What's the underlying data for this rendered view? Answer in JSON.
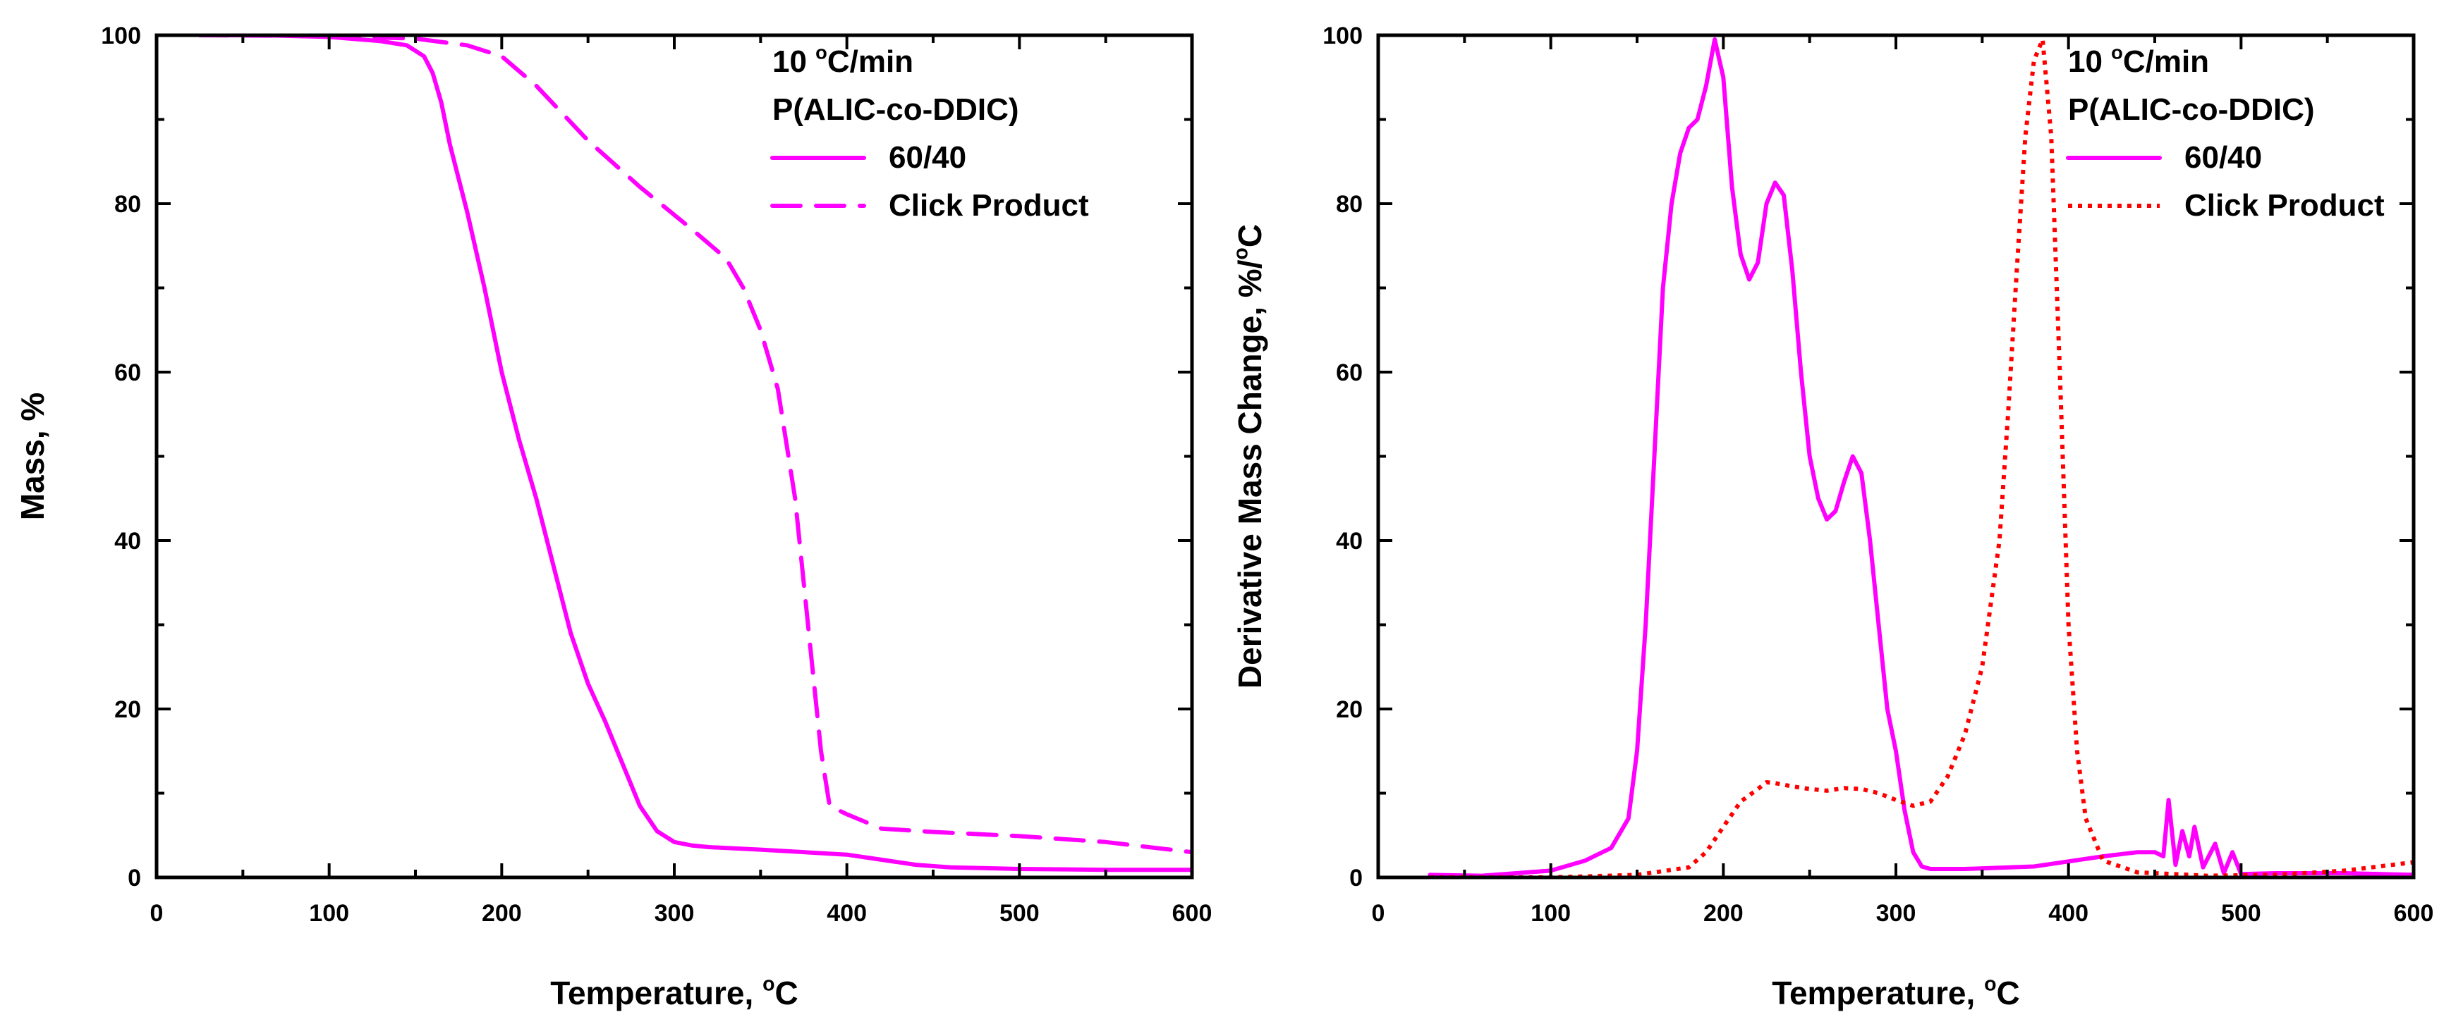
{
  "chart_data": [
    {
      "type": "line",
      "title": "",
      "xlabel": "Temperature, °C",
      "ylabel": "Mass, %",
      "xlim": [
        0,
        600
      ],
      "ylim": [
        0,
        100
      ],
      "xticks": [
        0,
        100,
        200,
        300,
        400,
        500,
        600
      ],
      "yticks": [
        0,
        20,
        40,
        60,
        80,
        100
      ],
      "legend": {
        "placement": "top-right",
        "lines": [
          "10 °C/min",
          "P(ALIC-co-DDIC)"
        ],
        "entries": [
          "60/40",
          "Click Product"
        ]
      },
      "series": [
        {
          "name": "60/40",
          "color": "#ff00ff",
          "style": "solid",
          "x": [
            25,
            60,
            100,
            130,
            145,
            155,
            160,
            165,
            170,
            180,
            190,
            200,
            210,
            220,
            230,
            240,
            250,
            260,
            270,
            280,
            290,
            300,
            310,
            320,
            350,
            400,
            420,
            440,
            460,
            500,
            550,
            600
          ],
          "y": [
            100,
            100,
            99.8,
            99.3,
            98.8,
            97.5,
            95.5,
            92,
            87,
            79,
            70,
            60,
            52,
            45,
            37,
            29,
            23,
            18.5,
            13.5,
            8.5,
            5.5,
            4.2,
            3.8,
            3.6,
            3.3,
            2.7,
            2.1,
            1.5,
            1.2,
            1.0,
            0.9,
            0.9
          ]
        },
        {
          "name": "Click Product",
          "color": "#ff00ff",
          "style": "dashed",
          "x": [
            25,
            100,
            150,
            180,
            200,
            220,
            250,
            280,
            310,
            330,
            340,
            350,
            360,
            370,
            375,
            380,
            385,
            390,
            395,
            400,
            420,
            450,
            500,
            550,
            600
          ],
          "y": [
            100,
            99.9,
            99.6,
            98.8,
            97.5,
            94,
            87.5,
            82,
            77,
            73.5,
            70,
            65,
            58,
            45,
            35,
            25,
            15,
            8.5,
            8,
            7.5,
            5.8,
            5.4,
            4.9,
            4.2,
            3.0
          ]
        }
      ]
    },
    {
      "type": "line",
      "title": "",
      "xlabel": "Temperature, °C",
      "ylabel": "Derivative Mass Change, %/°C",
      "xlim": [
        0,
        600
      ],
      "ylim": [
        0,
        100
      ],
      "xticks": [
        0,
        100,
        200,
        300,
        400,
        500,
        600
      ],
      "yticks": [
        0,
        20,
        40,
        60,
        80,
        100
      ],
      "legend": {
        "placement": "top-right",
        "lines": [
          "10 °C/min",
          "P(ALIC-co-DDIC)"
        ],
        "entries": [
          "60/40",
          "Click Product"
        ]
      },
      "series": [
        {
          "name": "60/40",
          "color": "#ff00ff",
          "style": "solid",
          "x": [
            30,
            60,
            100,
            120,
            135,
            145,
            150,
            155,
            160,
            165,
            170,
            175,
            180,
            185,
            190,
            195,
            200,
            205,
            210,
            215,
            220,
            225,
            230,
            235,
            240,
            245,
            250,
            255,
            260,
            265,
            270,
            275,
            280,
            285,
            290,
            295,
            300,
            305,
            310,
            315,
            320,
            340,
            380,
            420,
            440,
            450,
            455,
            458,
            462,
            466,
            470,
            473,
            478,
            485,
            490,
            495,
            500,
            520,
            560,
            600
          ],
          "y": [
            0.3,
            0.2,
            0.8,
            2.0,
            3.5,
            7,
            15,
            30,
            50,
            70,
            80,
            86,
            89,
            90,
            94,
            99.5,
            95,
            82,
            74,
            71,
            73,
            80,
            82.5,
            81,
            72,
            60,
            50,
            45,
            42.5,
            43.5,
            47,
            50,
            48,
            40,
            30,
            20,
            15,
            8,
            3,
            1.3,
            1.0,
            1.0,
            1.3,
            2.5,
            3.0,
            3.0,
            2.5,
            9.2,
            1.5,
            5.5,
            2.5,
            6.0,
            1.2,
            4.0,
            0.5,
            3.0,
            0.4,
            0.5,
            0.5,
            0.3
          ]
        },
        {
          "name": "Click Product",
          "color": "#ff0000",
          "style": "dotted",
          "x": [
            30,
            100,
            150,
            180,
            190,
            200,
            210,
            220,
            225,
            230,
            240,
            250,
            260,
            270,
            280,
            290,
            300,
            310,
            320,
            330,
            340,
            350,
            360,
            365,
            370,
            375,
            380,
            385,
            390,
            395,
            400,
            405,
            410,
            420,
            440,
            480,
            520,
            560,
            600
          ],
          "y": [
            0,
            0,
            0.3,
            1.2,
            3,
            6,
            9,
            10.5,
            11.3,
            11.2,
            10.8,
            10.5,
            10.3,
            10.6,
            10.5,
            10.0,
            9.2,
            8.5,
            9.0,
            12,
            17,
            25,
            40,
            55,
            72,
            88,
            97,
            99.5,
            88,
            60,
            30,
            15,
            7,
            2,
            0.6,
            0.2,
            0.3,
            0.8,
            1.8
          ]
        }
      ]
    }
  ]
}
